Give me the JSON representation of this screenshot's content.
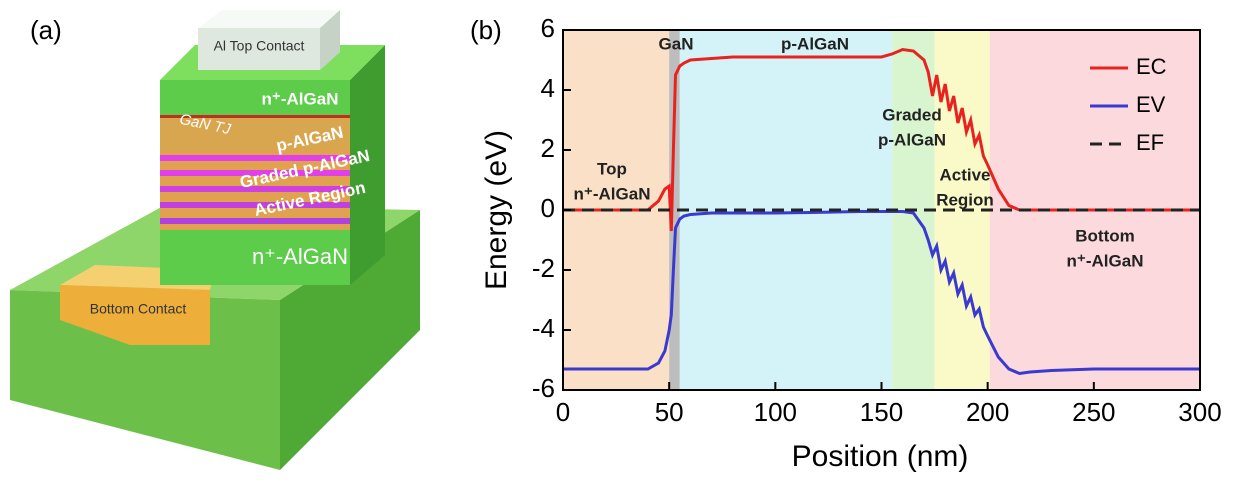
{
  "diagram": {
    "panel_label": "(a)",
    "top_contact": "Al Top Contact",
    "top_layer": "n⁺-AlGaN",
    "tunnel_junction": "GaN TJ",
    "p_layer": "p-AlGaN",
    "graded_layer": "Graded p-AlGaN",
    "active_layer": "Active Region",
    "bottom_layer": "n⁺-AlGaN",
    "bottom_contact": "Bottom Contact"
  },
  "chart_data": {
    "type": "line",
    "panel_label": "(b)",
    "x_label": "Position (nm)",
    "y_label": "Energy (eV)",
    "xlim": [
      0,
      300
    ],
    "ylim": [
      -6,
      6
    ],
    "xticks": [
      0,
      50,
      100,
      150,
      200,
      250,
      300
    ],
    "yticks": [
      -6,
      -4,
      -2,
      0,
      2,
      4,
      6
    ],
    "regions": [
      {
        "x0": 0,
        "x1": 50,
        "color": "#fbe0c8",
        "label": [
          "Top",
          "n⁺-AlGaN"
        ]
      },
      {
        "x0": 50,
        "x1": 55,
        "color": "#bdbdbd",
        "label": [
          "GaN"
        ]
      },
      {
        "x0": 55,
        "x1": 155,
        "color": "#d4f3f8",
        "label": [
          "p-AlGaN"
        ]
      },
      {
        "x0": 155,
        "x1": 175,
        "color": "#d8f5d0",
        "label": [
          "Graded",
          "p-AlGaN"
        ]
      },
      {
        "x0": 175,
        "x1": 201,
        "color": "#fafac8",
        "label": [
          "Active",
          "Region"
        ]
      },
      {
        "x0": 201,
        "x1": 300,
        "color": "#fbd9dc",
        "label": [
          "Bottom",
          "n⁺-AlGaN"
        ]
      }
    ],
    "x": [
      0,
      20,
      40,
      45,
      48,
      50,
      51,
      52,
      53,
      55,
      57,
      60,
      70,
      80,
      100,
      120,
      140,
      150,
      155,
      160,
      165,
      170,
      172,
      174,
      176,
      178,
      180,
      182,
      184,
      186,
      188,
      190,
      192,
      194,
      196,
      198,
      200,
      205,
      210,
      215,
      220,
      230,
      250,
      300
    ],
    "series": [
      {
        "name": "EC",
        "color": "#e8231f",
        "dash": false,
        "values": [
          0,
          0,
          0,
          0.3,
          0.7,
          0.8,
          -0.7,
          2,
          4.5,
          4.8,
          4.9,
          5.0,
          5.05,
          5.1,
          5.1,
          5.1,
          5.1,
          5.1,
          5.2,
          5.35,
          5.3,
          5.0,
          4.6,
          3.8,
          4.5,
          3.6,
          4.2,
          3.3,
          3.8,
          2.9,
          3.4,
          2.6,
          3.0,
          2.2,
          2.5,
          1.8,
          1.5,
          0.7,
          0.15,
          0,
          0,
          0,
          0,
          0
        ]
      },
      {
        "name": "EV",
        "color": "#3a3ad0",
        "dash": false,
        "values": [
          -5.3,
          -5.3,
          -5.3,
          -5.1,
          -4.7,
          -4.0,
          -3.5,
          -2.0,
          -0.6,
          -0.3,
          -0.2,
          -0.15,
          -0.1,
          -0.1,
          -0.1,
          -0.08,
          -0.05,
          -0.05,
          -0.05,
          -0.05,
          -0.1,
          -0.6,
          -1.0,
          -1.5,
          -1.2,
          -2.0,
          -1.7,
          -2.4,
          -2.1,
          -2.8,
          -2.5,
          -3.2,
          -2.9,
          -3.5,
          -3.3,
          -3.9,
          -4.2,
          -4.9,
          -5.3,
          -5.45,
          -5.4,
          -5.35,
          -5.3,
          -5.3
        ]
      },
      {
        "name": "EF",
        "color": "#222222",
        "dash": true,
        "values": [
          0,
          0,
          0,
          0,
          0,
          0,
          0,
          0,
          0,
          0,
          0,
          0,
          0,
          0,
          0,
          0,
          0,
          0,
          0,
          0,
          0,
          0,
          0,
          0,
          0,
          0,
          0,
          0,
          0,
          0,
          0,
          0,
          0,
          0,
          0,
          0,
          0,
          0,
          0,
          0,
          0,
          0,
          0,
          0
        ]
      }
    ]
  }
}
